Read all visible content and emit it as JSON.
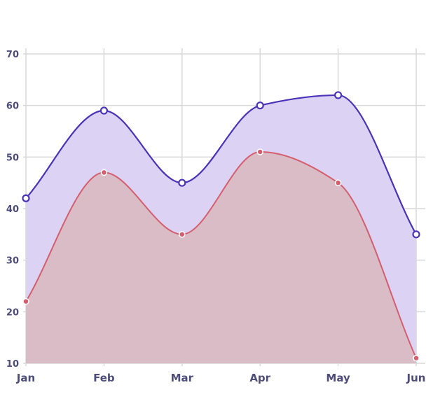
{
  "chart_data": {
    "type": "area",
    "title": "",
    "xlabel": "",
    "ylabel": "",
    "categories": [
      "Jan",
      "Feb",
      "Mar",
      "Apr",
      "May",
      "Jun"
    ],
    "ylim": [
      10,
      70
    ],
    "yticks": [
      10,
      20,
      30,
      40,
      50,
      60,
      70
    ],
    "grid": true,
    "legend": "none",
    "series": [
      {
        "values": [
          42,
          59,
          45,
          60,
          62,
          35
        ],
        "line_color": "#4b33b8",
        "fill_color": "#dcd3f4",
        "marker_fill": "#ffffff"
      },
      {
        "values": [
          22,
          47,
          35,
          51,
          45,
          11
        ],
        "line_color": "#d45e6e",
        "fill_color": "#d9bac2",
        "marker_fill": "#d45e6e"
      }
    ]
  }
}
